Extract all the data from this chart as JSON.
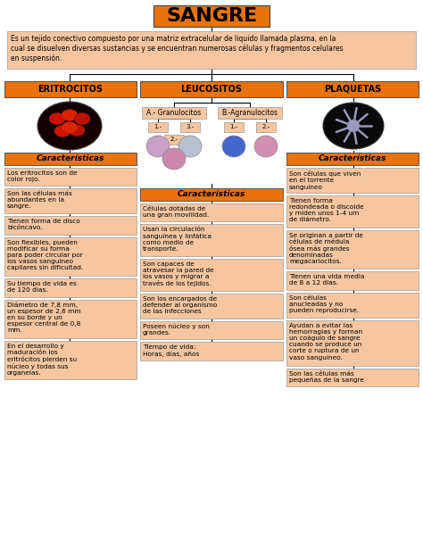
{
  "title": "SANGRE",
  "bg_color": "#FFFFFF",
  "box_light": "#F5C6A0",
  "box_orange": "#E8720C",
  "main_desc": "Es un tejido conectivo compuesto por una matriz extracelular de liquido llamada plasma, en la\ncual se disuelven diversas sustancias y se encuentran numerosas células y fragmentos celulares\nen suspensión.",
  "col1_header": "ERITROCITOS",
  "col2_header": "LEUCOSITOS",
  "col3_header": "PLAQUETAS",
  "sub_a": "A.- Granulocitos",
  "sub_b": "B.-Agranulocitos",
  "carac_label": "Características",
  "col1_items": [
    "Los eritrocitos son de\ncolor rojo.",
    "Son las células más\nabundantes en la\nsangre.",
    "Tienen forma de disco\nbicóncavo.",
    "Son flexibles, pueden\nmodificar su forma\npara poder circular por\nlos vasos sanguineo\ncapilares sin dificultad.",
    "Su tiempo de vida es\nde 120 dias.",
    "Diámetro de 7,8 mm,\nun espesor de 2,6 mm\nen su borde y un\nespesor central de 0,8\nmm.",
    "En el desarrollo y\nmaduración los\neritrócitos pierden su\nnúcleo y todas sus\norganelas."
  ],
  "col2_items": [
    "Células dotadas de\nuna gran movilidad.",
    "Usan la circulación\nsanguínea y linfática\ncomo medio de\ntransporte.",
    "Son capaces de\natravesar la pared de\nlos vasos y migrar a\ntravés de los tejidos.",
    "Son los encargados de\ndefender al organismo\nde las infecciones",
    "Poseen núcleo y son\ngrandes.",
    "Tiempo de vida:\nHoras, días, años"
  ],
  "col3_items": [
    "Son células que viven\nen el torrente\nsanguíneo",
    "Tienen forma\nredondeada o discoide\ny miden unos 1-4 um\nde diámetro.",
    "Se originan a partir de\ncélulas de médula\nósea más grandes\ndenominadas\nmegacariocitos.",
    "Tienen una vida media\nde 8 a 12 dias.",
    "Son células\nanucleadas y no\npueden reproducirse.",
    "Ayudan a evitar las\nhemorragias y forman\nun coágulo de sangre\ncuando se produce un\ncorte o ruptura de un\nvaso sanguíneo.",
    "Son las células más\npequeñas de la sangre"
  ]
}
